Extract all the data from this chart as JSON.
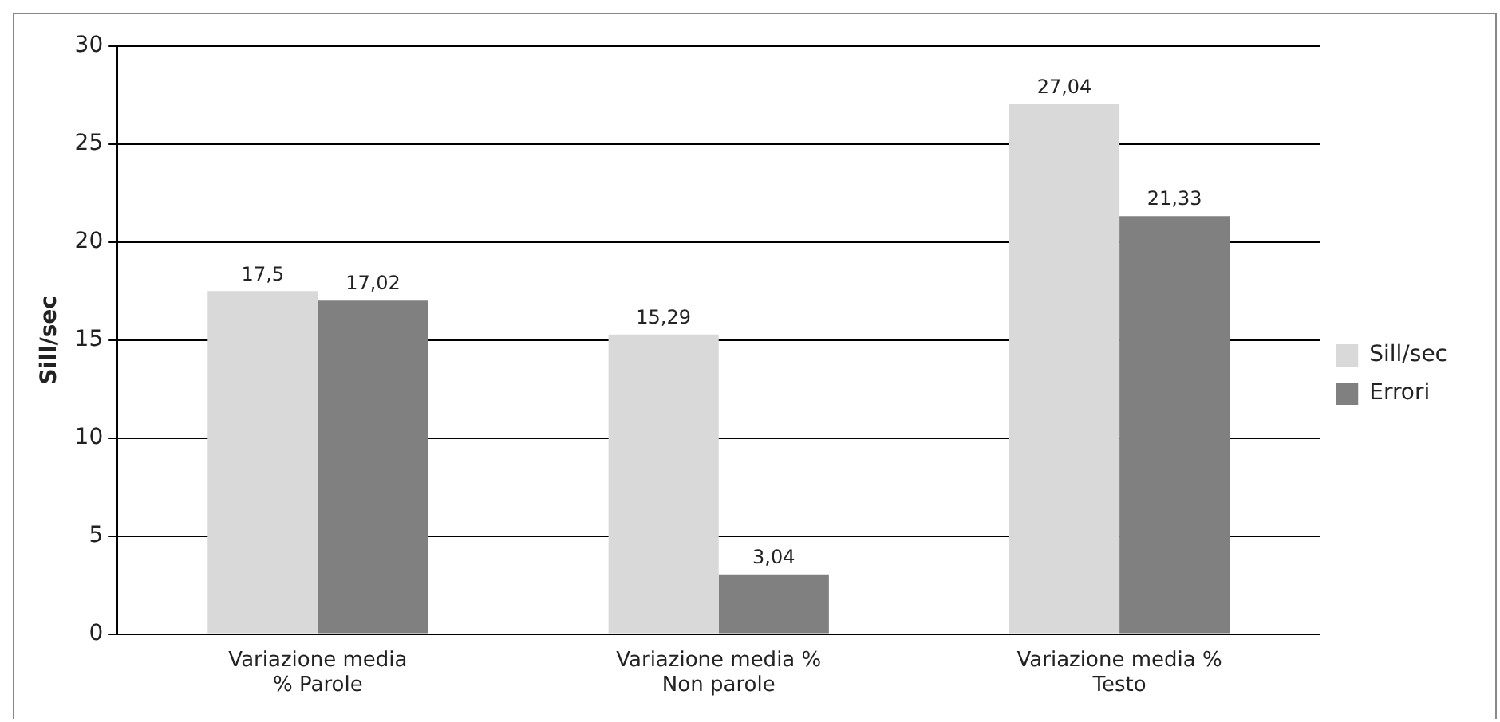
{
  "chart_data": {
    "type": "bar",
    "ylabel": "Sill/sec",
    "categories": [
      "Variazione media\n% Parole",
      "Variazione media %\nNon parole",
      "Variazione media %\nTesto"
    ],
    "series": [
      {
        "name": "Sill/sec",
        "color": "#d9d9d9",
        "values": [
          17.5,
          15.29,
          27.04
        ],
        "value_labels": [
          "17,5",
          "15,29",
          "27,04"
        ]
      },
      {
        "name": "Errori",
        "color": "#808080",
        "values": [
          17.02,
          3.04,
          21.33
        ],
        "value_labels": [
          "17,02",
          "3,04",
          "21,33"
        ]
      }
    ],
    "ylim": [
      0,
      30
    ],
    "yticks": [
      0,
      5,
      10,
      15,
      20,
      25,
      30
    ],
    "grid": "y",
    "legend": "right"
  }
}
